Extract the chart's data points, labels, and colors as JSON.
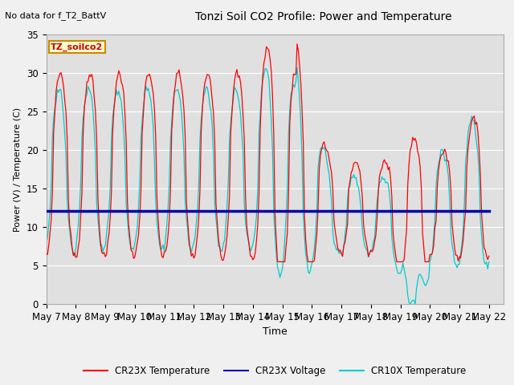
{
  "title": "Tonzi Soil CO2 Profile: Power and Temperature",
  "subtitle": "No data for f_T2_BattV",
  "xlabel": "Time",
  "ylabel": "Power (V) / Temperature (C)",
  "ylim": [
    0,
    35
  ],
  "voltage_value": 12.1,
  "legend_entries": [
    "CR23X Temperature",
    "CR23X Voltage",
    "CR10X Temperature"
  ],
  "legend_colors": [
    "#ff0000",
    "#0000aa",
    "#00cccc"
  ],
  "annotation_box": "TZ_soilco2",
  "annotation_fg": "#cc0000",
  "annotation_bg": "#ffffcc",
  "annotation_edge": "#cc8800",
  "fig_bg": "#f0f0f0",
  "ax_bg": "#e0e0e0",
  "grid_color": "#ffffff",
  "x_tick_labels": [
    "May 7",
    "May 8",
    "May 9",
    "May 10",
    "May 11",
    "May 12",
    "May 13",
    "May 14",
    "May 15",
    "May 16",
    "May 17",
    "May 18",
    "May 19",
    "May 20",
    "May 21",
    "May 22"
  ]
}
